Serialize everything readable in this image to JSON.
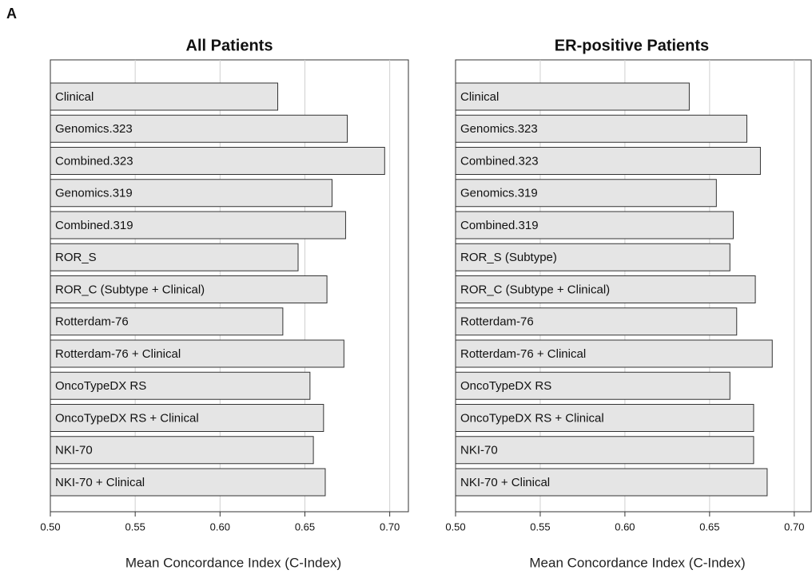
{
  "panel_label": "A",
  "chart_data": [
    {
      "type": "bar",
      "orientation": "horizontal",
      "title": "All Patients",
      "x_label": "Mean Concordance Index (C-Index)",
      "categories": [
        "Clinical",
        "Genomics.323",
        "Combined.323",
        "Genomics.319",
        "Combined.319",
        "ROR_S",
        "ROR_C (Subtype + Clinical)",
        "Rotterdam-76",
        "Rotterdam-76 + Clinical",
        "OncoTypeDX RS",
        "OncoTypeDX RS + Clinical",
        "NKI-70",
        "NKI-70 + Clinical"
      ],
      "values": [
        0.634,
        0.675,
        0.697,
        0.666,
        0.674,
        0.646,
        0.663,
        0.637,
        0.673,
        0.653,
        0.661,
        0.655,
        0.662
      ],
      "color": "#e5e5e5",
      "xlim": [
        0.5,
        0.711
      ],
      "xticks": [
        {
          "value": 0.5,
          "label": "0.50"
        },
        {
          "value": 0.55,
          "label": "0.55"
        },
        {
          "value": 0.6,
          "label": "0.60"
        },
        {
          "value": 0.65,
          "label": "0.65"
        },
        {
          "value": 0.7,
          "label": "0.70"
        }
      ],
      "grid": true
    },
    {
      "type": "bar",
      "orientation": "horizontal",
      "title": "ER-positive Patients",
      "x_label": "Mean Concordance Index (C-Index)",
      "categories": [
        "Clinical",
        "Genomics.323",
        "Combined.323",
        "Genomics.319",
        "Combined.319",
        "ROR_S (Subtype)",
        "ROR_C (Subtype + Clinical)",
        "Rotterdam-76",
        "Rotterdam-76 + Clinical",
        "OncoTypeDX RS",
        "OncoTypeDX RS + Clinical",
        "NKI-70",
        "NKI-70 + Clinical"
      ],
      "values": [
        0.638,
        0.672,
        0.68,
        0.654,
        0.664,
        0.662,
        0.677,
        0.666,
        0.687,
        0.662,
        0.676,
        0.676,
        0.684
      ],
      "color": "#e5e5e5",
      "xlim": [
        0.5,
        0.71
      ],
      "xticks": [
        {
          "value": 0.5,
          "label": "0.50"
        },
        {
          "value": 0.55,
          "label": "0.55"
        },
        {
          "value": 0.6,
          "label": "0.60"
        },
        {
          "value": 0.65,
          "label": "0.65"
        },
        {
          "value": 0.7,
          "label": "0.70"
        }
      ],
      "grid": true
    }
  ]
}
